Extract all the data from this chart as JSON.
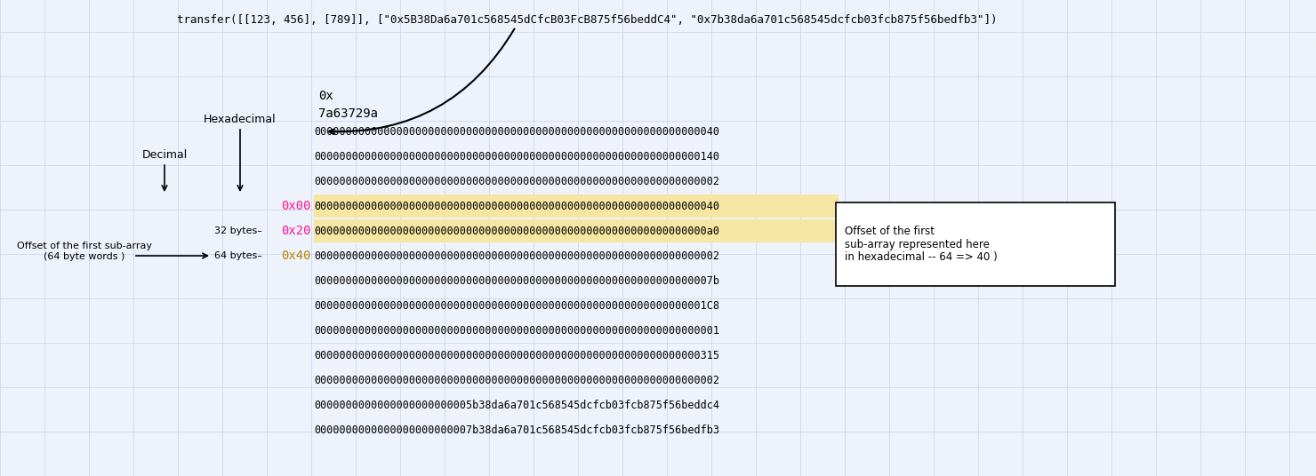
{
  "title_text": "transfer([[123, 456], [789]], [\"0x5B38Da6a701c568545dCfcB03FcB875f56beddC4\", \"0x7b38da6a701c568545dcfcb03fcb875f56bedfb3\"])",
  "hex_label": "0x",
  "hex_label2": "7a63729a",
  "label_decimal": "Decimal",
  "label_hexadecimal": "Hexadecimal",
  "label_offset": "Offset of the first sub-array\n(64 byte words )",
  "label_32bytes": "32 bytes–",
  "label_64bytes": "64 bytes–",
  "hex_0x00": "0x00",
  "hex_0x20": "0x20",
  "hex_0x40": "0x40",
  "annotation_box": "Offset of the first\nsub-array represented here\nin hexadecimal -- 64 => 40 )",
  "hex_color": "#FF1493",
  "gold_color": "#B8860B",
  "highlight_color": "#F5E6A3",
  "data_rows": [
    {
      "text": "0000000000000000000000000000000000000000000000000000000000000040",
      "highlight": false
    },
    {
      "text": "0000000000000000000000000000000000000000000000000000000000000140",
      "highlight": false
    },
    {
      "text": "0000000000000000000000000000000000000000000000000000000000000002",
      "highlight": false
    },
    {
      "text": "0000000000000000000000000000000000000000000000000000000000000040",
      "highlight": true
    },
    {
      "text": "00000000000000000000000000000000000000000000000000000000000000a0",
      "highlight": true
    },
    {
      "text": "0000000000000000000000000000000000000000000000000000000000000002",
      "highlight": false
    },
    {
      "text": "000000000000000000000000000000000000000000000000000000000000007b",
      "highlight": false
    },
    {
      "text": "00000000000000000000000000000000000000000000000000000000000001C8",
      "highlight": false
    },
    {
      "text": "0000000000000000000000000000000000000000000000000000000000000001",
      "highlight": false
    },
    {
      "text": "0000000000000000000000000000000000000000000000000000000000000315",
      "highlight": false
    },
    {
      "text": "0000000000000000000000000000000000000000000000000000000000000002",
      "highlight": false
    },
    {
      "text": "0000000000000000000000005b38da6a701c568545dcfcb03fcb875f56beddc4",
      "highlight": false
    },
    {
      "text": "0000000000000000000000007b38da6a701c568545dcfcb03fcb875f56bedfb3",
      "highlight": false
    }
  ],
  "bg_color": "#EEF2FA",
  "grid_color": "#C5D3EA"
}
